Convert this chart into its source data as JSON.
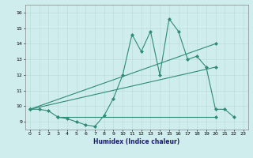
{
  "xlabel": "Humidex (Indice chaleur)",
  "ylabel": "",
  "xlim": [
    -0.5,
    23.5
  ],
  "ylim": [
    8.5,
    16.5
  ],
  "yticks": [
    9,
    10,
    11,
    12,
    13,
    14,
    15,
    16
  ],
  "xticks": [
    0,
    1,
    2,
    3,
    4,
    5,
    6,
    7,
    8,
    9,
    10,
    11,
    12,
    13,
    14,
    15,
    16,
    17,
    18,
    19,
    20,
    21,
    22,
    23
  ],
  "line_color": "#2E8B74",
  "bg_color": "#D0EDED",
  "line1_x": [
    0,
    1,
    2,
    3,
    4,
    5,
    6,
    7,
    8,
    9,
    10,
    11,
    12,
    13,
    14,
    15,
    16,
    17,
    18,
    19,
    20,
    21,
    22,
    23
  ],
  "line1_y": [
    9.8,
    9.8,
    9.7,
    9.3,
    9.2,
    9.0,
    8.8,
    8.7,
    9.4,
    10.5,
    12.0,
    14.6,
    13.5,
    14.8,
    12.0,
    15.6,
    14.8,
    13.0,
    13.2,
    12.5,
    9.8,
    9.8,
    9.3,
    null
  ],
  "line2_x": [
    0,
    20
  ],
  "line2_y": [
    9.8,
    12.5
  ],
  "line3_x": [
    0,
    20
  ],
  "line3_y": [
    9.8,
    14.0
  ],
  "line4_x": [
    3,
    20
  ],
  "line4_y": [
    9.3,
    9.3
  ],
  "marker": "D",
  "markersize": 2.0,
  "linewidth": 0.8
}
